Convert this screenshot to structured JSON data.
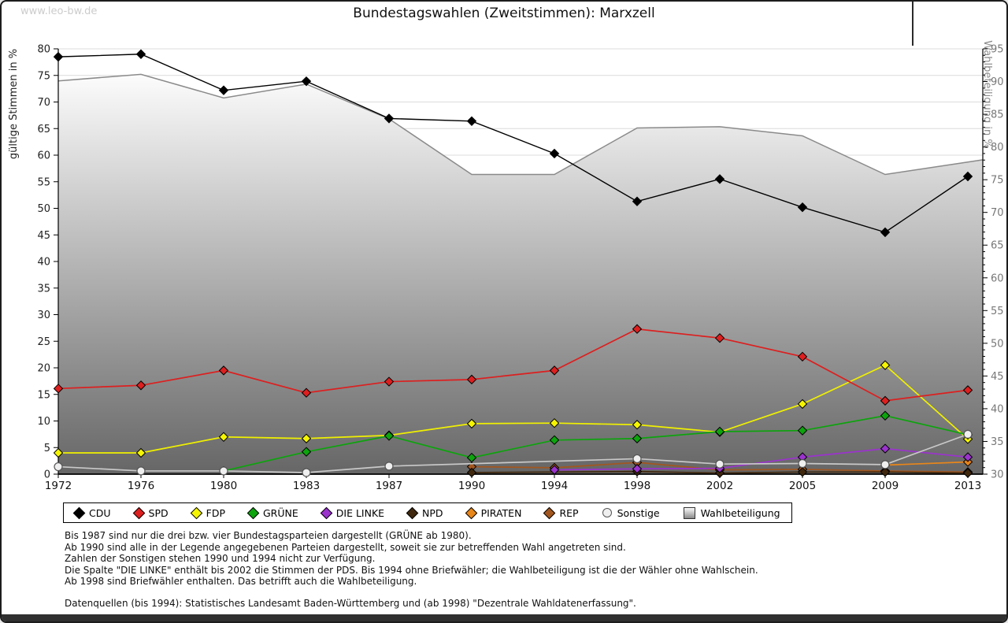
{
  "page": {
    "watermark": "www.leo-bw.de"
  },
  "chart_data": {
    "type": "line",
    "title": "Bundestagswahlen (Zweitstimmen): Marxzell",
    "ylabel_left": "gültige Stimmen in %",
    "ylabel_right": "Wahlbeteiligung in %",
    "x": [
      1972,
      1976,
      1980,
      1983,
      1987,
      1990,
      1994,
      1998,
      2002,
      2005,
      2009,
      2013
    ],
    "ylim_left": [
      0,
      80
    ],
    "ylim_right": [
      30,
      95
    ],
    "ytick_step": 5,
    "grid": true,
    "legend_position": "bottom",
    "series": [
      {
        "name": "CDU",
        "color": "#000000",
        "marker": "diamond",
        "marker_fill": "#000000",
        "axis": "left",
        "values": [
          78.5,
          79.0,
          72.2,
          73.9,
          66.9,
          66.4,
          60.3,
          51.3,
          55.5,
          50.2,
          45.5,
          56.0
        ]
      },
      {
        "name": "SPD",
        "color": "#dd1f1f",
        "marker": "diamond",
        "marker_fill": "#dd1f1f",
        "axis": "left",
        "values": [
          16.1,
          16.7,
          19.5,
          15.3,
          17.4,
          17.8,
          19.5,
          27.3,
          25.6,
          22.1,
          13.8,
          15.8
        ]
      },
      {
        "name": "FDP",
        "color": "#f0f000",
        "marker": "diamond",
        "marker_fill": "#f5f500",
        "axis": "left",
        "values": [
          4.0,
          4.0,
          7.0,
          6.7,
          7.3,
          9.5,
          9.6,
          9.3,
          7.9,
          13.2,
          20.5,
          6.6
        ]
      },
      {
        "name": "GRÜNE",
        "color": "#0da40d",
        "marker": "diamond",
        "marker_fill": "#0da40d",
        "axis": "left",
        "values": [
          null,
          null,
          0.6,
          4.2,
          7.2,
          3.1,
          6.4,
          6.7,
          8.0,
          8.2,
          11.0,
          7.4
        ]
      },
      {
        "name": "DIE LINKE",
        "color": "#9a33cc",
        "marker": "diamond",
        "marker_fill": "#9a33cc",
        "axis": "left",
        "values": [
          null,
          null,
          null,
          null,
          null,
          null,
          0.8,
          1.0,
          1.1,
          3.2,
          4.8,
          3.2
        ]
      },
      {
        "name": "NPD",
        "color": "#40280e",
        "marker": "diamond",
        "marker_fill": "#40280e",
        "axis": "left",
        "values": [
          null,
          null,
          null,
          null,
          null,
          0.3,
          null,
          0.5,
          0.2,
          0.4,
          0.4,
          0.2
        ]
      },
      {
        "name": "PIRATEN",
        "color": "#e8861a",
        "marker": "diamond",
        "marker_fill": "#e8861a",
        "axis": "left",
        "values": [
          null,
          null,
          null,
          null,
          null,
          null,
          null,
          null,
          null,
          null,
          1.7,
          2.3
        ]
      },
      {
        "name": "REP",
        "color": "#a2561f",
        "marker": "diamond",
        "marker_fill": "#a2561f",
        "axis": "left",
        "values": [
          null,
          null,
          null,
          null,
          null,
          1.4,
          1.2,
          2.2,
          0.8,
          0.9,
          0.6,
          0.4
        ]
      },
      {
        "name": "Sonstige",
        "color": "#c9c9c9",
        "marker": "circle",
        "marker_fill": "#efefef",
        "axis": "left",
        "values": [
          1.4,
          0.6,
          0.6,
          0.3,
          1.5,
          null,
          null,
          2.9,
          1.9,
          2.0,
          1.8,
          7.5
        ]
      },
      {
        "name": "Wahlbeteiligung",
        "color": "#8a8a8a",
        "marker": "square",
        "axis": "right",
        "area": true,
        "area_gradient": [
          "#fcfcfc",
          "#666666"
        ],
        "values": [
          90.1,
          91.1,
          87.5,
          89.6,
          84.3,
          75.8,
          75.8,
          82.9,
          83.1,
          81.7,
          75.8,
          77.7
        ]
      }
    ]
  },
  "footnotes": [
    "Bis 1987 sind nur die drei bzw. vier Bundestagsparteien dargestellt (GRÜNE ab 1980).",
    "Ab 1990 sind alle in der Legende angegebenen Parteien dargestellt, soweit sie zur betreffenden Wahl angetreten sind.",
    "Zahlen der Sonstigen stehen 1990 und 1994 nicht zur Verfügung.",
    "Die Spalte \"DIE LINKE\" enthält bis 2002 die Stimmen der PDS. Bis 1994 ohne Briefwähler; die Wahlbeteiligung ist die der Wähler ohne Wahlschein.",
    "Ab 1998 sind Briefwähler enthalten. Das betrifft auch die Wahlbeteiligung."
  ],
  "source_line": "Datenquellen (bis 1994): Statistisches Landesamt Baden-Württemberg und (ab 1998) \"Dezentrale Wahldatenerfassung\"."
}
